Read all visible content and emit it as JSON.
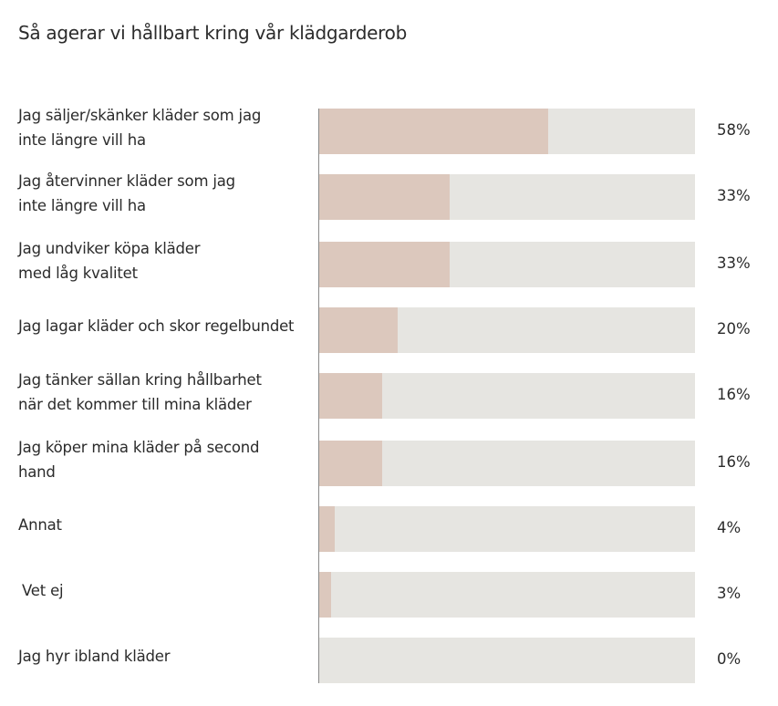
{
  "chart_data": {
    "type": "bar",
    "orientation": "horizontal",
    "title": "Så agerar vi hållbart kring vår klädgarderob",
    "categories": [
      "Jag säljer/skänker kläder som jag inte längre vill ha",
      "Jag återvinner kläder som jag inte längre vill ha",
      "Jag undviker köpa kläder med låg kvalitet",
      "Jag lagar kläder och skor regelbundet",
      "Jag tänker sällan kring hållbarhet när det kommer till mina kläder",
      "Jag köper mina kläder på second hand",
      "Annat",
      "Vet ej",
      "Jag hyr ibland kläder"
    ],
    "values": [
      58,
      33,
      33,
      20,
      16,
      16,
      4,
      3,
      0
    ],
    "value_labels": [
      "58%",
      "33%",
      "33%",
      "20%",
      "16%",
      "16%",
      "4%",
      "3%",
      "0%"
    ],
    "unit": "%",
    "grid": false,
    "colors": {
      "fill": "#dcc8bd",
      "track": "#e6e5e1"
    }
  }
}
